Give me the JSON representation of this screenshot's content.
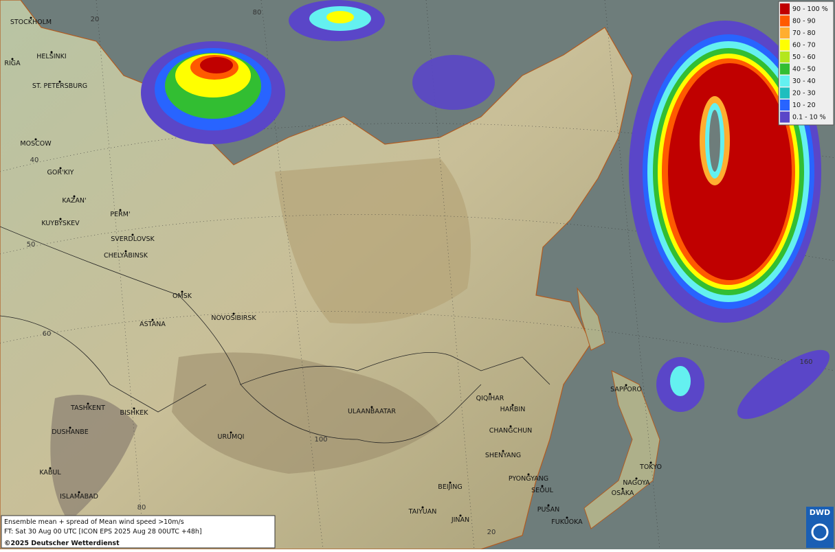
{
  "legend": {
    "items": [
      {
        "label": "90 - 100 %",
        "color": "#c00000"
      },
      {
        "label": "80 - 90",
        "color": "#ff5a00"
      },
      {
        "label": "70 - 80",
        "color": "#ffae30"
      },
      {
        "label": "60 - 70",
        "color": "#ffff00"
      },
      {
        "label": "50 - 60",
        "color": "#b4e61e"
      },
      {
        "label": "40 - 50",
        "color": "#32be32"
      },
      {
        "label": "30 - 40",
        "color": "#64f0f0"
      },
      {
        "label": "20 - 30",
        "color": "#1ebebe"
      },
      {
        "label": "10 - 20",
        "color": "#2864ff"
      },
      {
        "label": "0.1 - 10 %",
        "color": "#5a46c8"
      }
    ]
  },
  "cities": [
    "STOCKHOLM",
    "HELSINKI",
    "RIGA",
    "ST. PETERSBURG",
    "MOSCOW",
    "GOR'KIY",
    "KAZAN'",
    "PERM'",
    "KUYBYSKEV",
    "SVERDLOVSK",
    "CHELYABINSK",
    "OMSK",
    "NOVOSIBIRSK",
    "ASTANA",
    "TASHKENT",
    "BISHKEK",
    "DUSHANBE",
    "URUMQI",
    "ULAANBAATAR",
    "KABUL",
    "ISLAMABAD",
    "QIQIHAR",
    "HARBIN",
    "CHANGCHUN",
    "SHENYANG",
    "SAPPORO",
    "PYONGYANG",
    "SEOUL",
    "BEIJING",
    "TAIYUAN",
    "JINAN",
    "PUSAN",
    "FUKUOKA",
    "NAGOYA",
    "OSAKA",
    "TOKYO"
  ],
  "graticule_labels": [
    "20",
    "80",
    "40",
    "50",
    "60",
    "100",
    "80",
    "160",
    "20"
  ],
  "footer": {
    "line1": "Ensemble mean + spread of Mean wind speed >10m/s",
    "line2": "FT: Sat 30 Aug 00 UTC [ICON EPS 2025 Aug 28 00UTC +48h]",
    "copyright": "©2025 Deutscher Wetterdienst"
  },
  "logo": "DWD"
}
